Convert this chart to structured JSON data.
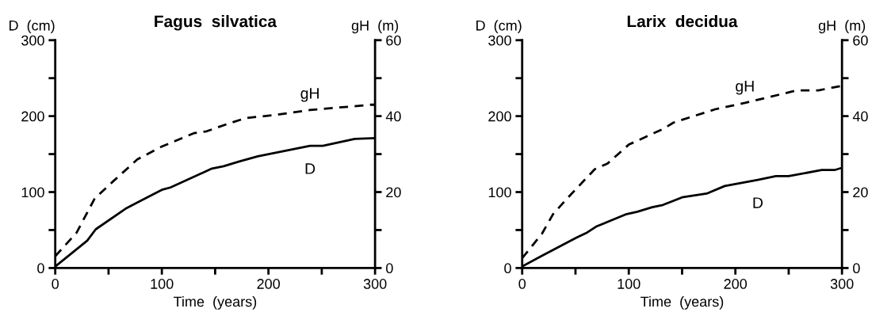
{
  "chart_data": [
    {
      "type": "line",
      "title": "Fagus  silvatica",
      "xlabel": "Time  (years)",
      "ylabel": "D  (cm)",
      "y2label": "gH  (m)",
      "xlim": [
        0,
        300
      ],
      "xticks": [
        0,
        {
          "value": 50,
          "label": null
        },
        100,
        {
          "value": 150,
          "label": null
        },
        200,
        {
          "value": 250,
          "label": null
        },
        300
      ],
      "ylim": [
        0,
        300
      ],
      "yticks": [
        0,
        {
          "value": 50,
          "label": null
        },
        100,
        {
          "value": 150,
          "label": null
        },
        200,
        {
          "value": 250,
          "label": null
        },
        300
      ],
      "y2lim": [
        0,
        60
      ],
      "y2ticks": [
        0,
        {
          "value": 10,
          "label": null
        },
        20,
        {
          "value": 30,
          "label": null
        },
        40,
        {
          "value": 50,
          "label": null
        },
        60
      ],
      "grid": false,
      "legend": false,
      "series": [
        {
          "name": "D",
          "color": "#000000",
          "line_style": "solid",
          "x": [
            0,
            30,
            38,
            67,
            100,
            108,
            147,
            158,
            172,
            190,
            239,
            251,
            281,
            300
          ],
          "values": [
            2,
            36,
            51,
            79,
            103,
            106,
            131,
            134,
            140,
            147,
            161,
            161,
            170,
            171
          ]
        },
        {
          "name": "gH",
          "color": "#000000",
          "line_style": "dashed",
          "axis": "y2",
          "x": [
            0,
            20,
            37,
            55,
            77,
            100,
            130,
            142,
            162,
            179,
            209,
            239,
            296,
            300
          ],
          "values": [
            3.1,
            9.3,
            18.3,
            23,
            28.6,
            32,
            35.5,
            36,
            38,
            39.5,
            40.4,
            41.6,
            43,
            43
          ]
        }
      ]
    },
    {
      "type": "line",
      "title": "Larix  decidua",
      "xlabel": "Time  (years)",
      "ylabel": "D  (cm)",
      "y2label": "gH  (m)",
      "xlim": [
        0,
        300
      ],
      "xticks": [
        0,
        {
          "value": 50,
          "label": null
        },
        100,
        {
          "value": 150,
          "label": null
        },
        200,
        {
          "value": 250,
          "label": null
        },
        300
      ],
      "ylim": [
        0,
        300
      ],
      "yticks": [
        0,
        {
          "value": 50,
          "label": null
        },
        100,
        {
          "value": 150,
          "label": null
        },
        200,
        {
          "value": 250,
          "label": null
        },
        300
      ],
      "y2lim": [
        0,
        60
      ],
      "y2ticks": [
        0,
        {
          "value": 10,
          "label": null
        },
        20,
        {
          "value": 30,
          "label": null
        },
        40,
        {
          "value": 50,
          "label": null
        },
        60
      ],
      "grid": false,
      "legend": false,
      "series": [
        {
          "name": "D",
          "color": "#000000",
          "line_style": "solid",
          "x": [
            0,
            18.5,
            51,
            60,
            70,
            98,
            108,
            122,
            132,
            150,
            173,
            190,
            221,
            238,
            250,
            281,
            293,
            300
          ],
          "values": [
            2,
            16,
            40,
            46,
            55,
            71,
            74,
            80,
            83,
            93,
            98,
            108,
            116,
            121,
            121,
            129,
            129,
            132
          ]
        },
        {
          "name": "gH",
          "color": "#000000",
          "line_style": "dashed",
          "axis": "y2",
          "x": [
            0,
            18.5,
            29,
            43.5,
            68,
            80,
            100,
            132,
            142,
            181,
            209,
            258,
            278,
            300
          ],
          "values": [
            2.6,
            9,
            14.2,
            18.7,
            26,
            27.5,
            32.5,
            36.6,
            38.3,
            41.8,
            43.5,
            46.8,
            46.8,
            48
          ]
        }
      ]
    }
  ]
}
